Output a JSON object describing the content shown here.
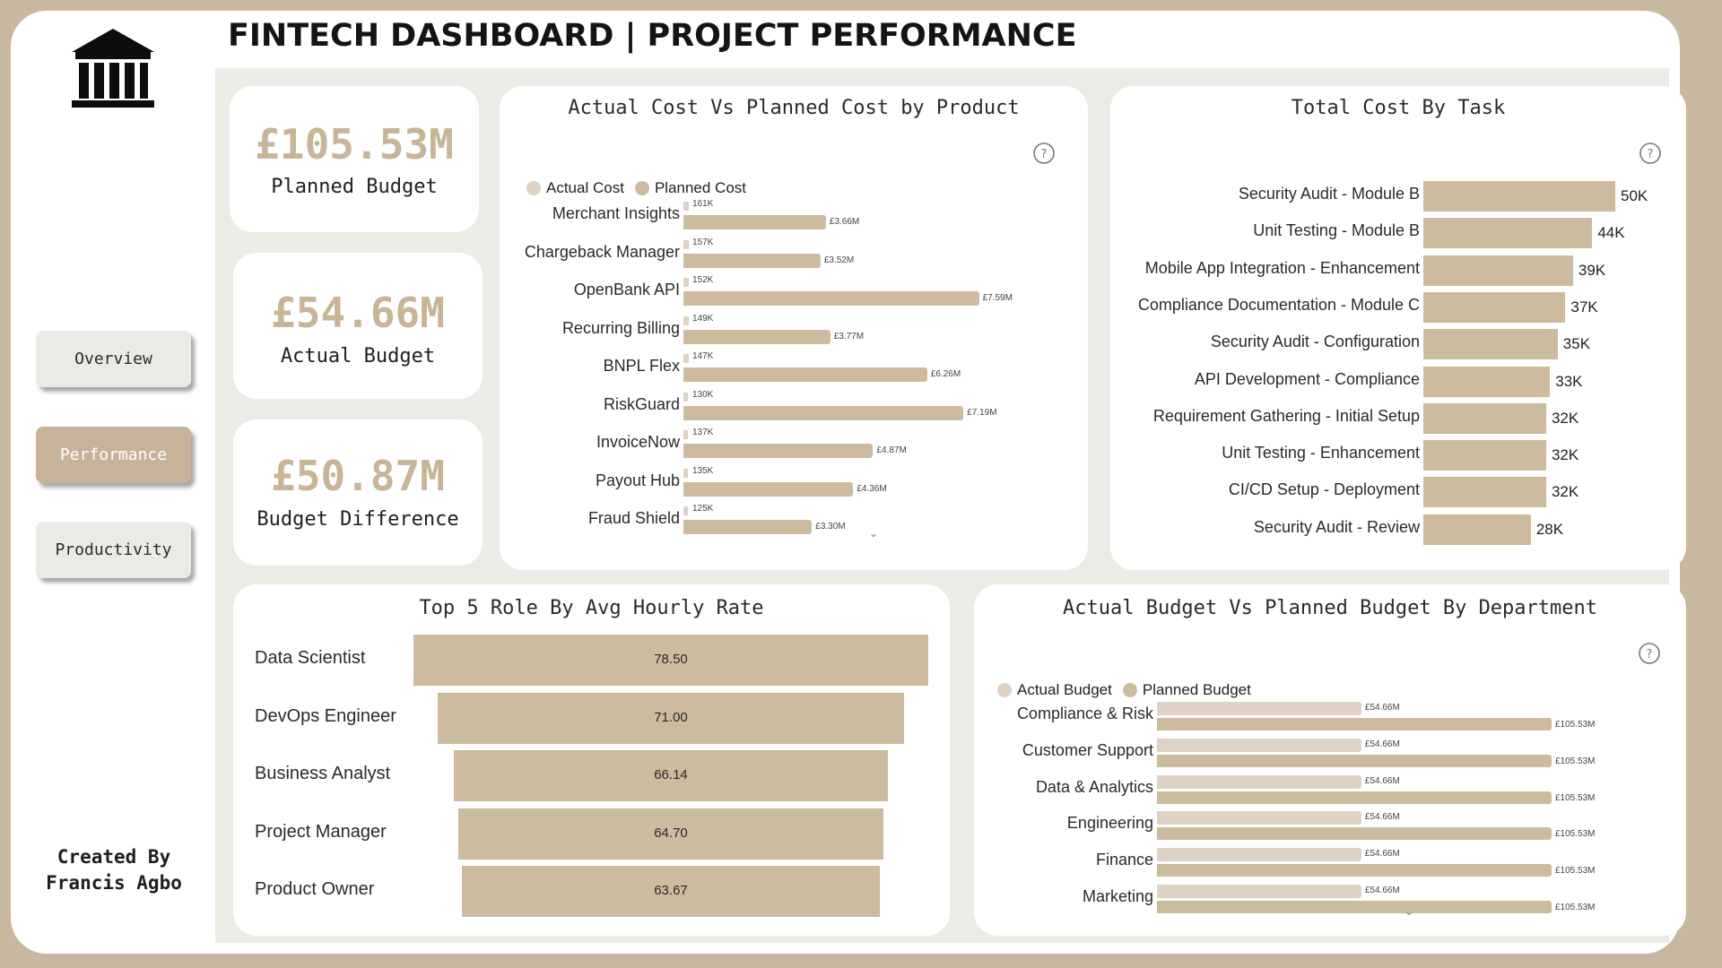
{
  "header": {
    "title": "FINTECH DASHBOARD | PROJECT PERFORMANCE"
  },
  "sidebar": {
    "logo_icon": "bank-building-icon",
    "nav": [
      {
        "label": "Overview",
        "active": false
      },
      {
        "label": "Performance",
        "active": true
      },
      {
        "label": "Productivity",
        "active": false
      }
    ],
    "credit_line1": "Created By",
    "credit_line2": "Francis Agbo"
  },
  "kpis": [
    {
      "value": "£105.53M",
      "label": "Planned Budget"
    },
    {
      "value": "£54.66M",
      "label": "Actual Budget"
    },
    {
      "value": "£50.87M",
      "label": "Budget Difference"
    }
  ],
  "colors": {
    "accent": "#c8b598",
    "planned": "#cdbb9f",
    "actual": "#ddd2c3",
    "nav_active": "#c6b399"
  },
  "charts": {
    "cost_by_product": {
      "title": "Actual Cost Vs Planned Cost by Product",
      "legend": [
        "Actual Cost",
        "Planned Cost"
      ],
      "help_icon": "question-circle-icon"
    },
    "cost_by_task": {
      "title": "Total Cost By Task",
      "help_icon": "question-circle-icon"
    },
    "hourly_rate": {
      "title": "Top 5 Role By Avg Hourly Rate"
    },
    "budget_by_dept": {
      "title": "Actual Budget Vs Planned Budget By Department",
      "legend": [
        "Actual Budget",
        "Planned Budget"
      ],
      "help_icon": "question-circle-icon"
    }
  },
  "chart_data": [
    {
      "type": "bar",
      "title": "Actual Cost Vs Planned Cost by Product",
      "orientation": "horizontal",
      "categories": [
        "Merchant Insights",
        "Chargeback Manager",
        "OpenBank API",
        "Recurring Billing",
        "BNPL Flex",
        "RiskGuard",
        "InvoiceNow",
        "Payout Hub",
        "Fraud Shield"
      ],
      "series": [
        {
          "name": "Actual Cost",
          "values": [
            161000,
            157000,
            152000,
            149000,
            147000,
            130000,
            137000,
            135000,
            125000
          ],
          "labels": [
            "161K",
            "157K",
            "152K",
            "149K",
            "147K",
            "130K",
            "137K",
            "135K",
            "125K"
          ]
        },
        {
          "name": "Planned Cost",
          "values": [
            3.66,
            3.52,
            7.59,
            3.77,
            6.26,
            7.19,
            4.87,
            4.36,
            3.3
          ],
          "labels": [
            "£3.66M",
            "£3.52M",
            "£7.59M",
            "£3.77M",
            "£6.26M",
            "£7.19M",
            "£4.87M",
            "£4.36M",
            "£3.30M"
          ]
        }
      ]
    },
    {
      "type": "bar",
      "title": "Total Cost By Task",
      "orientation": "horizontal",
      "categories": [
        "Security Audit - Module B",
        "Unit Testing - Module B",
        "Mobile App Integration - Enhancement",
        "Compliance Documentation - Module C",
        "Security Audit - Configuration",
        "API Development - Compliance",
        "Requirement Gathering - Initial Setup",
        "Unit Testing - Enhancement",
        "CI/CD Setup - Deployment",
        "Security Audit - Review"
      ],
      "values": [
        50,
        44,
        39,
        37,
        35,
        33,
        32,
        32,
        32,
        28
      ],
      "labels": [
        "50K",
        "44K",
        "39K",
        "37K",
        "35K",
        "33K",
        "32K",
        "32K",
        "32K",
        "28K"
      ]
    },
    {
      "type": "bar",
      "title": "Top 5 Role By Avg Hourly Rate",
      "orientation": "funnel",
      "categories": [
        "Data Scientist",
        "DevOps Engineer",
        "Business Analyst",
        "Project Manager",
        "Product Owner"
      ],
      "values": [
        78.5,
        71.0,
        66.14,
        64.7,
        63.67
      ],
      "labels": [
        "78.50",
        "71.00",
        "66.14",
        "64.70",
        "63.67"
      ]
    },
    {
      "type": "bar",
      "title": "Actual Budget Vs Planned Budget By Department",
      "orientation": "horizontal",
      "categories": [
        "Compliance & Risk",
        "Customer Support",
        "Data & Analytics",
        "Engineering",
        "Finance",
        "Marketing"
      ],
      "series": [
        {
          "name": "Actual Budget",
          "values": [
            54.66,
            54.66,
            54.66,
            54.66,
            54.66,
            54.66
          ],
          "labels": [
            "£54.66M",
            "£54.66M",
            "£54.66M",
            "£54.66M",
            "£54.66M",
            "£54.66M"
          ]
        },
        {
          "name": "Planned Budget",
          "values": [
            105.53,
            105.53,
            105.53,
            105.53,
            105.53,
            105.53
          ],
          "labels": [
            "£105.53M",
            "£105.53M",
            "£105.53M",
            "£105.53M",
            "£105.53M",
            "£105.53M"
          ]
        }
      ]
    }
  ]
}
